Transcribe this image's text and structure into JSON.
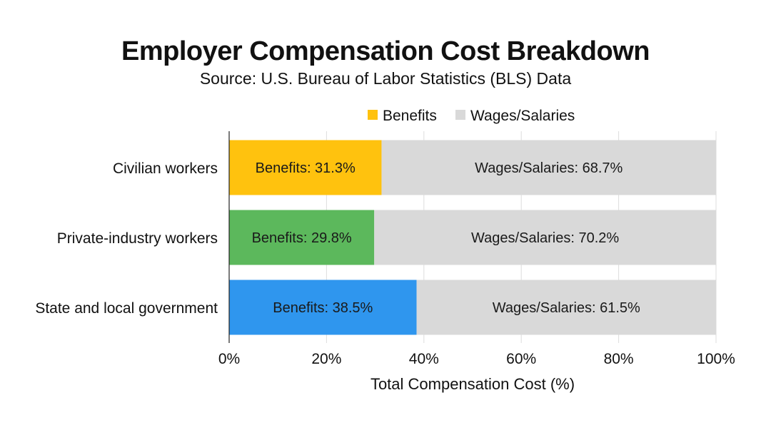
{
  "chart_data": {
    "type": "bar",
    "orientation": "horizontal",
    "stacked": true,
    "title": "Employer Compensation Cost Breakdown",
    "subtitle": "Source: U.S. Bureau of Labor Statistics (BLS) Data",
    "xlabel": "Total Compensation Cost (%)",
    "ylabel": "",
    "xlim": [
      0,
      100
    ],
    "x_ticks": [
      "0%",
      "20%",
      "40%",
      "60%",
      "80%",
      "100%"
    ],
    "grid": true,
    "legend_position": "top",
    "categories": [
      "Civilian workers",
      "Private-industry workers",
      "State and local government"
    ],
    "series": [
      {
        "name": "Benefits",
        "values": [
          31.3,
          29.8,
          38.5
        ],
        "legend_color": "#FFC20E",
        "colors": [
          "#FFC20E",
          "#5CB85C",
          "#2F96EE"
        ]
      },
      {
        "name": "Wages/Salaries",
        "values": [
          68.7,
          70.2,
          61.5
        ],
        "legend_color": "#D9D9D9",
        "colors": [
          "#D9D9D9",
          "#D9D9D9",
          "#D9D9D9"
        ]
      }
    ],
    "data_labels": [
      [
        "Benefits: 31.3%",
        "Wages/Salaries: 68.7%"
      ],
      [
        "Benefits: 29.8%",
        "Wages/Salaries: 70.2%"
      ],
      [
        "Benefits: 38.5%",
        "Wages/Salaries: 61.5%"
      ]
    ]
  }
}
